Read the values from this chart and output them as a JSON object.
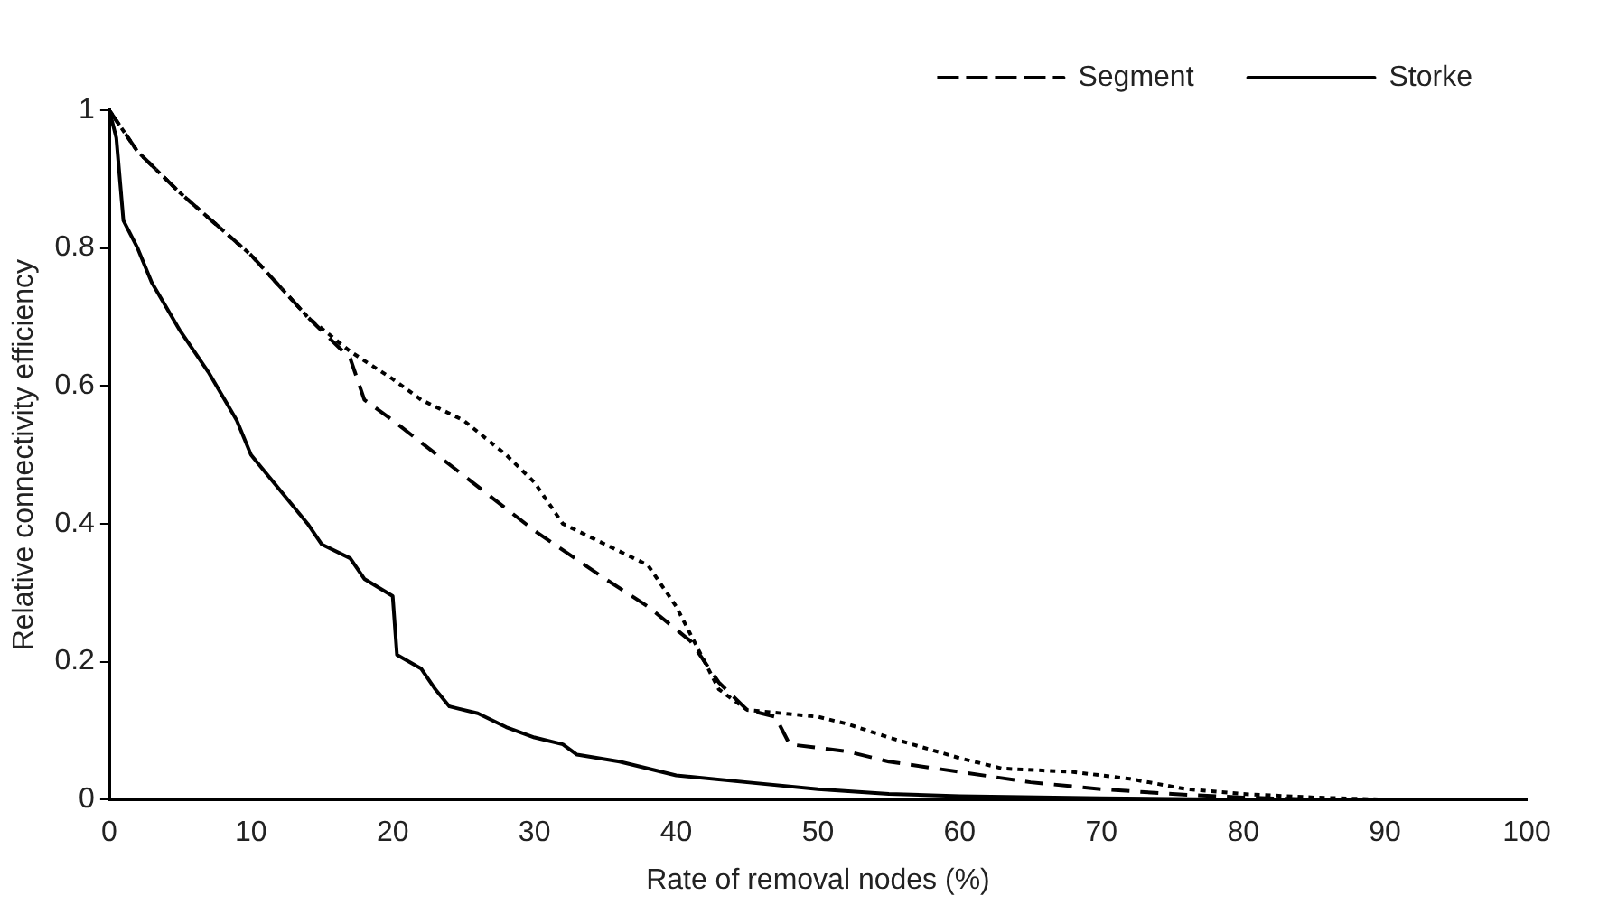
{
  "chart_data": {
    "type": "line",
    "xlabel": "Rate of removal nodes (%)",
    "ylabel": "Relative connectivity efficiency",
    "xlim": [
      0,
      100
    ],
    "xticks": [
      0,
      10,
      20,
      30,
      40,
      50,
      60,
      70,
      80,
      90,
      100
    ],
    "ylim": [
      0,
      1
    ],
    "yticks": [
      0,
      0.2,
      0.4,
      0.6,
      0.8,
      1
    ],
    "grid": false,
    "legend": "top right",
    "marker": "none",
    "series": [
      {
        "name": "Segment",
        "color": "#000000",
        "line_style": "dashed",
        "x": [
          0,
          1,
          2,
          5,
          10,
          14,
          16,
          17,
          18,
          20,
          25,
          30,
          35,
          38,
          41,
          42,
          43,
          45,
          47,
          48,
          52,
          55,
          60,
          65,
          70,
          75,
          80,
          85
        ],
        "values": [
          1,
          0.97,
          0.94,
          0.88,
          0.79,
          0.7,
          0.66,
          0.64,
          0.58,
          0.55,
          0.47,
          0.39,
          0.32,
          0.28,
          0.23,
          0.2,
          0.17,
          0.13,
          0.12,
          0.08,
          0.07,
          0.055,
          0.04,
          0.025,
          0.015,
          0.008,
          0.003,
          0
        ]
      },
      {
        "name": "Storke",
        "color": "#000000",
        "line_style": "solid",
        "x": [
          0,
          0.5,
          1,
          2,
          3,
          5,
          7,
          9,
          10,
          12,
          14,
          15,
          17,
          18,
          20,
          20.3,
          22,
          23,
          24,
          26,
          28,
          30,
          32,
          33,
          36,
          40,
          45,
          50,
          55,
          60,
          70,
          80
        ],
        "values": [
          1,
          0.96,
          0.84,
          0.8,
          0.75,
          0.68,
          0.62,
          0.55,
          0.5,
          0.45,
          0.4,
          0.37,
          0.35,
          0.32,
          0.295,
          0.21,
          0.19,
          0.16,
          0.135,
          0.125,
          0.105,
          0.09,
          0.08,
          0.065,
          0.055,
          0.035,
          0.025,
          0.015,
          0.008,
          0.005,
          0.002,
          0
        ]
      },
      {
        "color": "#000000",
        "line_style": "dotted",
        "x": [
          0,
          1,
          2,
          5,
          10,
          14,
          17,
          20,
          22,
          25,
          28,
          30,
          32,
          35,
          38,
          40,
          42,
          43,
          45,
          50,
          52,
          55,
          60,
          63,
          68,
          72,
          76,
          80,
          85,
          90
        ],
        "values": [
          1,
          0.97,
          0.94,
          0.88,
          0.79,
          0.7,
          0.65,
          0.61,
          0.58,
          0.55,
          0.5,
          0.46,
          0.4,
          0.37,
          0.34,
          0.28,
          0.2,
          0.16,
          0.13,
          0.12,
          0.11,
          0.09,
          0.06,
          0.045,
          0.04,
          0.03,
          0.015,
          0.008,
          0.003,
          0
        ]
      }
    ]
  }
}
